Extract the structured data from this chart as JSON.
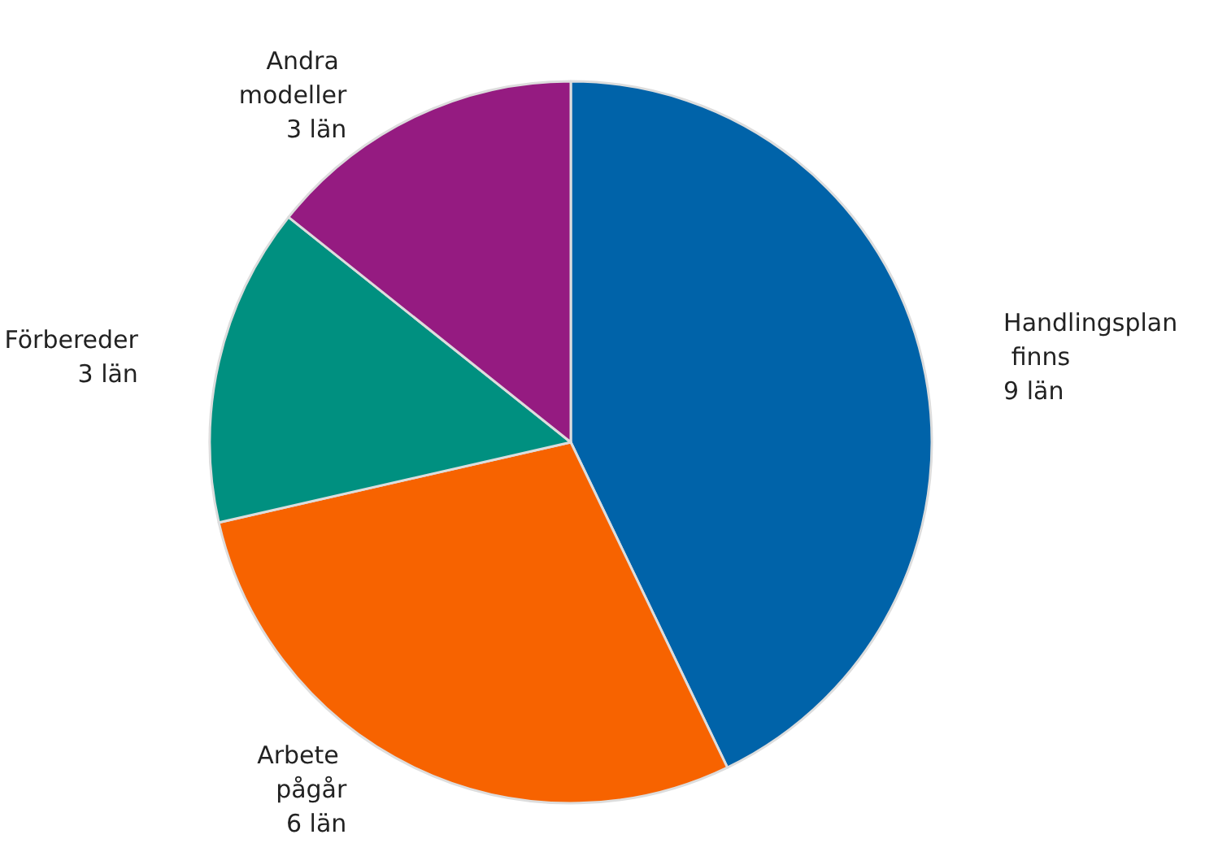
{
  "chart_data": {
    "type": "pie",
    "categories": [
      "Handlingsplan finns",
      "Arbete pågår",
      "Förbereder",
      "Andra modeller"
    ],
    "values": [
      9,
      6,
      3,
      3
    ],
    "value_labels": [
      "9 län",
      "6 län",
      "3 län",
      "3 län"
    ],
    "colors": [
      "#0063a9",
      "#f76300",
      "#009080",
      "#951b81"
    ],
    "legend": false
  }
}
